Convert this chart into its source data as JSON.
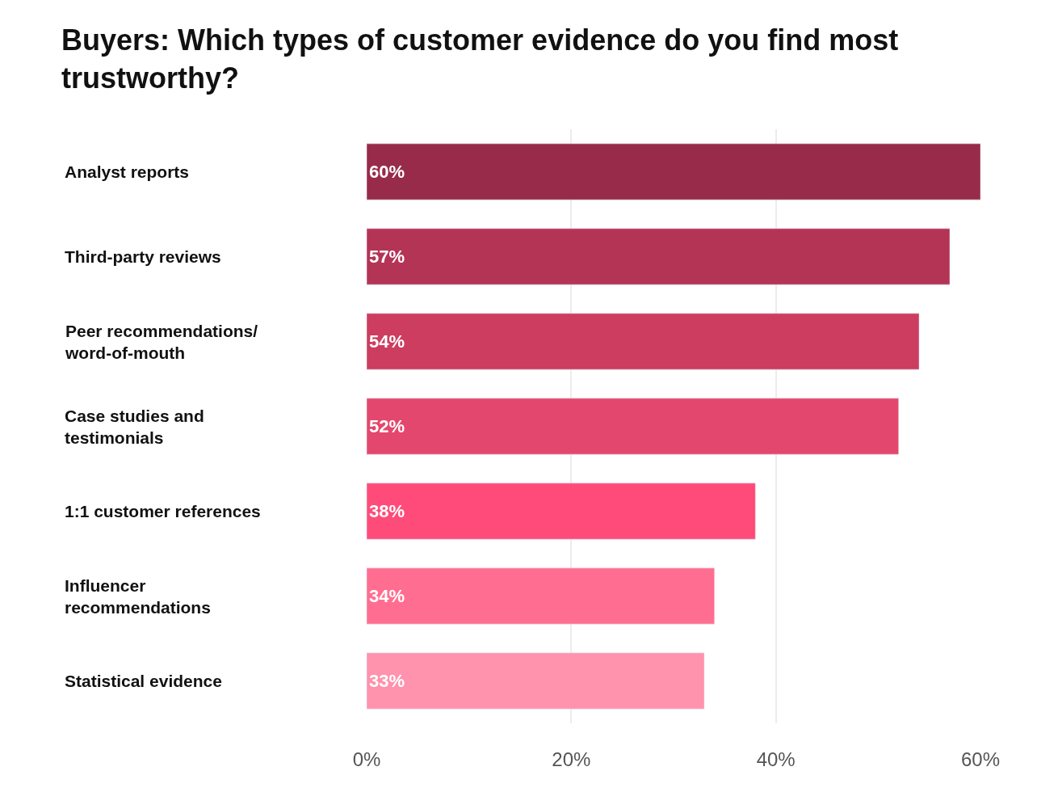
{
  "chart_data": {
    "type": "bar",
    "orientation": "horizontal",
    "title": "Buyers: Which types of customer evidence do you find most trustworthy?",
    "categories": [
      "Analyst reports",
      "Third-party reviews",
      "Peer recommendations/ word-of-mouth",
      "Case studies and testimonials",
      "1:1 customer references",
      "Influencer recommendations",
      "Statistical evidence"
    ],
    "values": [
      60,
      57,
      54,
      52,
      38,
      34,
      33
    ],
    "value_labels": [
      "60%",
      "57%",
      "54%",
      "52%",
      "38%",
      "34%",
      "33%"
    ],
    "colors": [
      "#982b4a",
      "#b43456",
      "#cc3d60",
      "#e4476d",
      "#ff4b79",
      "#ff6e91",
      "#ff92ad"
    ],
    "xlim": [
      0,
      60
    ],
    "xticks": [
      {
        "value": 0,
        "label": "0%"
      },
      {
        "value": 20,
        "label": "20%"
      },
      {
        "value": 40,
        "label": "40%"
      },
      {
        "value": 60,
        "label": "60%"
      }
    ],
    "grid": "x"
  }
}
